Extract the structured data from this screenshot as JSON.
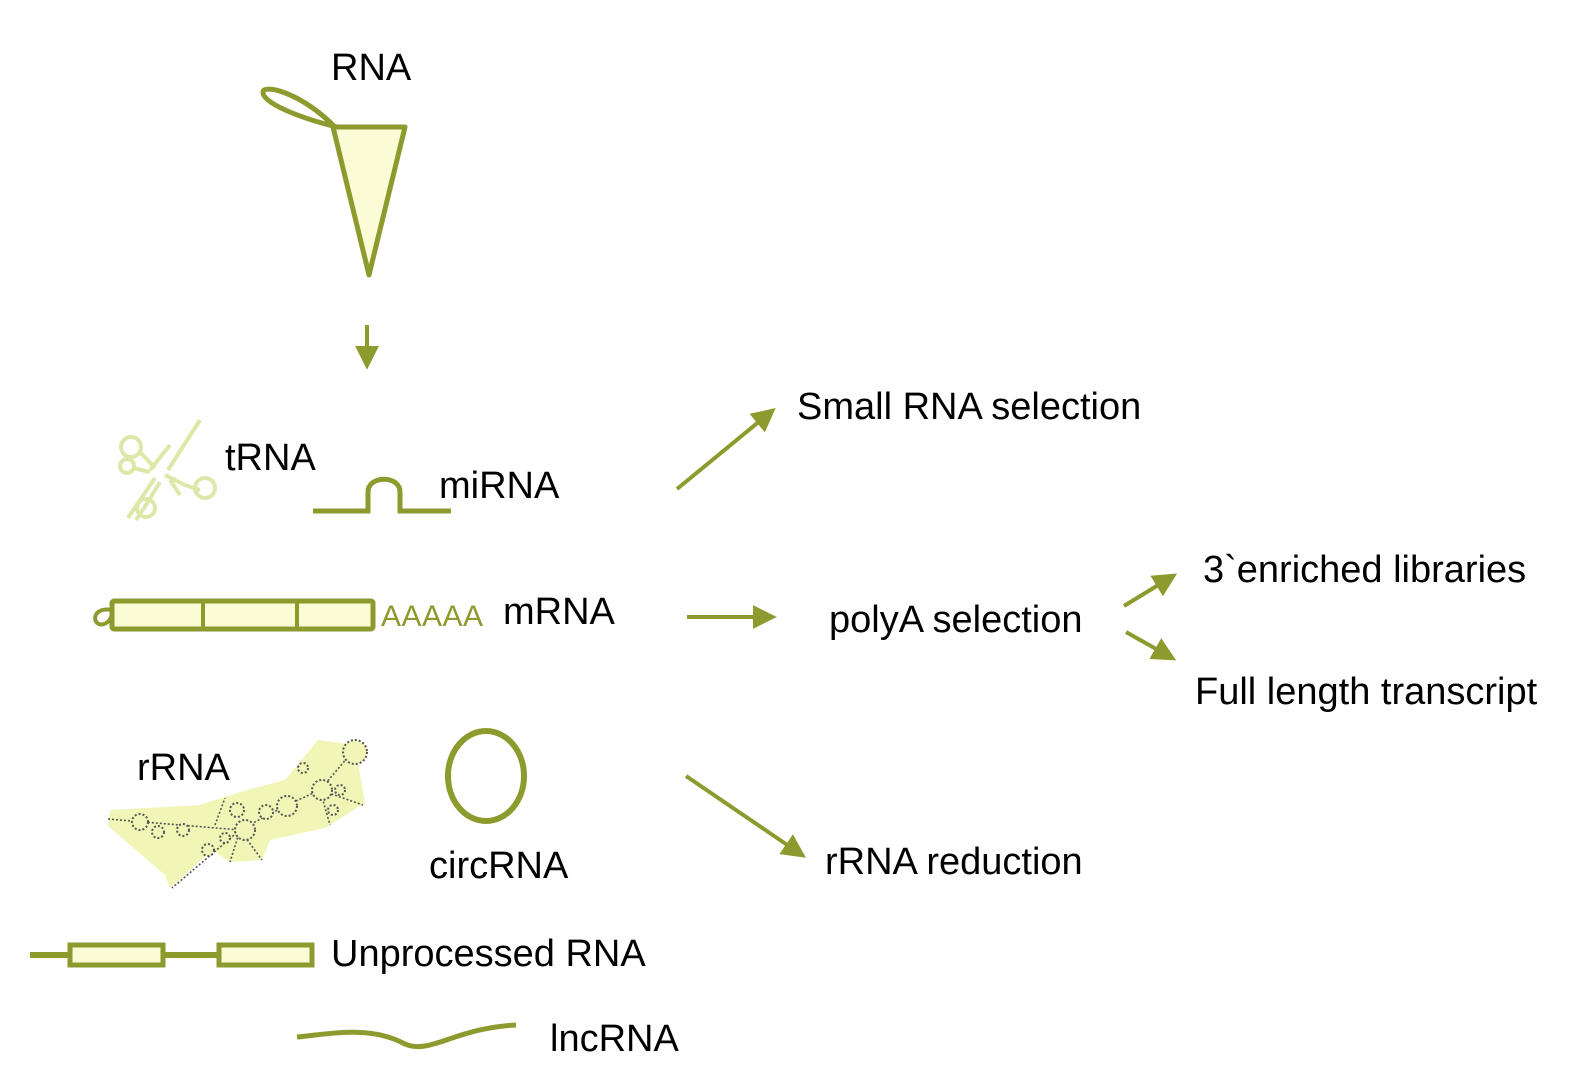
{
  "colors": {
    "stroke": "#8c9a2e",
    "fill": "#fbfbd5",
    "light_stroke": "#dde8a8",
    "rrna_fill": "#f1f5b5"
  },
  "labels": {
    "rna": "RNA",
    "trna": "tRNA",
    "mirna": "miRNA",
    "mrna": "mRNA",
    "polya_tail": "AAAAA",
    "rrna": "rRNA",
    "circrna": "circRNA",
    "unprocessed": "Unprocessed RNA",
    "lncrna": "lncRNA",
    "small_rna_selection": "Small RNA selection",
    "polya_selection": "polyA selection",
    "three_prime_enriched": "3`enriched libraries",
    "full_length": "Full length transcript",
    "rrna_reduction": "rRNA reduction"
  }
}
